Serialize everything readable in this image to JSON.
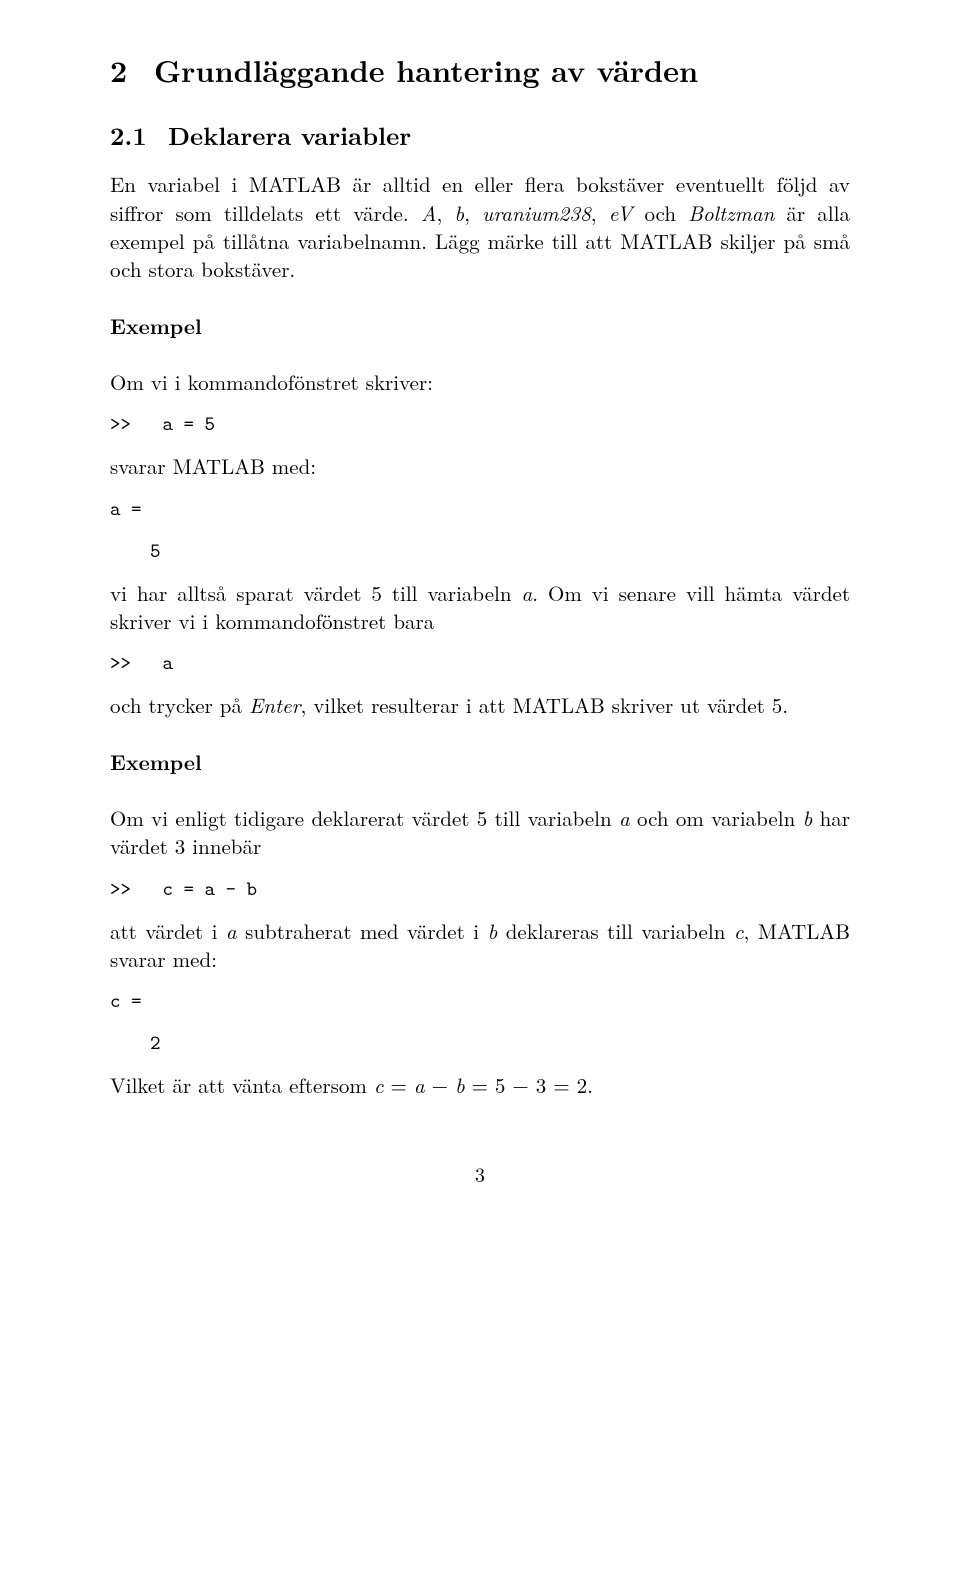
{
  "h1": {
    "num": "2",
    "title": "Grundläggande hantering av värden"
  },
  "h2": {
    "num": "2.1",
    "title": "Deklarera variabler"
  },
  "p1a": "En variabel i MATLAB är alltid en eller flera bokstäver eventuellt följd av siffror som tilldelats ett värde. ",
  "p1b_i": "A",
  "p1c": ", ",
  "p1d_i": "b",
  "p1e": ", ",
  "p1f_i": "uranium238",
  "p1g": ", ",
  "p1h_i": "eV",
  "p1i": " och ",
  "p1j_i": "Boltzman",
  "p1k": " är alla exempel på tillåtna variabelnamn. Lägg märke till att MATLAB skiljer på små och stora bokstäver.",
  "ex": "Exempel",
  "p2": "Om vi i kommandofönstret skriver:",
  "c1": ">>   a = 5",
  "p3": "svarar MATLAB med:",
  "c2": "a =",
  "c3": "5",
  "p4a": "vi har alltså sparat värdet 5 till variabeln ",
  "p4b_i": "a",
  "p4c": ". Om vi senare vill hämta värdet skriver vi i kommandofönstret bara",
  "c4": ">>   a",
  "p5a": "och trycker på ",
  "p5b_i": "Enter",
  "p5c": ", vilket resulterar i att MATLAB skriver ut värdet 5.",
  "p6a": "Om vi enligt tidigare deklarerat värdet 5 till variabeln ",
  "p6b_i": "a",
  "p6c": " och om variabeln ",
  "p6d_i": "b",
  "p6e": " har värdet 3 innebär",
  "c5": ">>   c = a - b",
  "p7a": "att värdet i ",
  "p7b_i": "a",
  "p7c": " subtraherat med värdet i ",
  "p7d_i": "b",
  "p7e": " deklareras till variabeln ",
  "p7f_i": "c",
  "p7g": ", MATLAB svarar med:",
  "c6": "c =",
  "c7": "2",
  "p8a": "Vilket är att vänta eftersom ",
  "p8b_i": "c",
  "p8c": " = ",
  "p8d_i": "a",
  "p8e": " − ",
  "p8f_i": "b",
  "p8g": " = 5 − 3 = 2.",
  "pagenum": "3"
}
